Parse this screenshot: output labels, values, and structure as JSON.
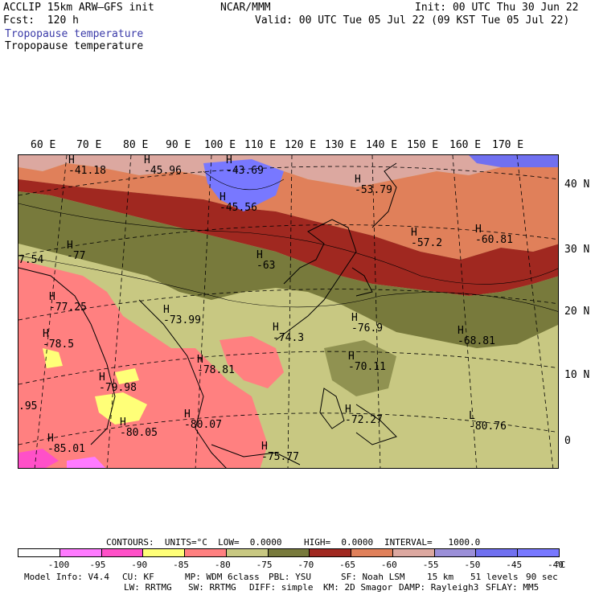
{
  "header": {
    "model": "ACCLIP 15km ARW–GFS init",
    "fcst": "Fcst:  120 h",
    "org": "NCAR/MMM",
    "init": "Init: 00 UTC Thu 30 Jun 22",
    "valid": "Valid: 00 UTC Tue 05 Jul 22 (09 KST Tue 05 Jul 22)",
    "field1": "Tropopause temperature",
    "field2": "Tropopause temperature"
  },
  "map": {
    "lon_labels": [
      "60 E",
      "70 E",
      "80 E",
      "90 E",
      "100 E",
      "110 E",
      "120 E",
      "130 E",
      "140 E",
      "150 E",
      "160 E",
      "170 E"
    ],
    "lat_labels": [
      "40 N",
      "30 N",
      "20 N",
      "10 N",
      "0"
    ],
    "extrema": [
      {
        "m": "H",
        "v": "-41.18"
      },
      {
        "m": "H",
        "v": "-45.96"
      },
      {
        "m": "H",
        "v": "-43.69"
      },
      {
        "m": "H",
        "v": "-45.56"
      },
      {
        "m": "H",
        "v": "-53.79"
      },
      {
        "m": "H",
        "v": "-57.2"
      },
      {
        "m": "H",
        "v": "-60.81"
      },
      {
        "m": "H",
        "v": "-77"
      },
      {
        "m": "",
        "v": "7.54"
      },
      {
        "m": "H",
        "v": "-63"
      },
      {
        "m": "H",
        "v": "-77.25"
      },
      {
        "m": "H",
        "v": "-73.99"
      },
      {
        "m": "H",
        "v": "-74.3"
      },
      {
        "m": "H",
        "v": "-76.9"
      },
      {
        "m": "H",
        "v": "-68.81"
      },
      {
        "m": "H",
        "v": "-78.5"
      },
      {
        "m": "H",
        "v": "-70.11"
      },
      {
        "m": "H",
        "v": "-78.81"
      },
      {
        "m": "H",
        "v": "-79.98"
      },
      {
        "m": "",
        "v": ".95"
      },
      {
        "m": "H",
        "v": "-80.07"
      },
      {
        "m": "H",
        "v": "-72.27"
      },
      {
        "m": "H",
        "v": "-80.05"
      },
      {
        "m": "L",
        "v": "-80.76"
      },
      {
        "m": "H",
        "v": "-85.01"
      },
      {
        "m": "H",
        "v": "-75.77"
      }
    ]
  },
  "contour_info": {
    "contours": "CONTOURS:  UNITS=°C  LOW=  0.0000",
    "high": "HIGH=  0.0000",
    "interval": "INTERVAL=   1000.0"
  },
  "colorbar": {
    "colors": [
      "#ffffff",
      "#ff7aff",
      "#ff50c8",
      "#ffff78",
      "#ff8080",
      "#c8c882",
      "#787a3c",
      "#a02820",
      "#e0805a",
      "#dca8a0",
      "#9b8fd8",
      "#7070f0",
      "#7878ff"
    ],
    "labels": [
      "-100",
      "-95",
      "-90",
      "-85",
      "-80",
      "-75",
      "-70",
      "-65",
      "-60",
      "-55",
      "-50",
      "-45",
      "-40"
    ],
    "unit": "°C"
  },
  "footer": {
    "line1": [
      "Model Info: V4.4",
      "CU: KF",
      "MP: WDM 6class",
      "PBL: YSU",
      "SF: Noah LSM",
      "15 km",
      "51 levels",
      "90 sec"
    ],
    "line2": [
      "LW: RRTMG",
      "SW: RRTMG",
      "DIFF: simple",
      "KM: 2D Smagor",
      "DAMP: Rayleigh3",
      "SFLAY: MM5"
    ]
  }
}
